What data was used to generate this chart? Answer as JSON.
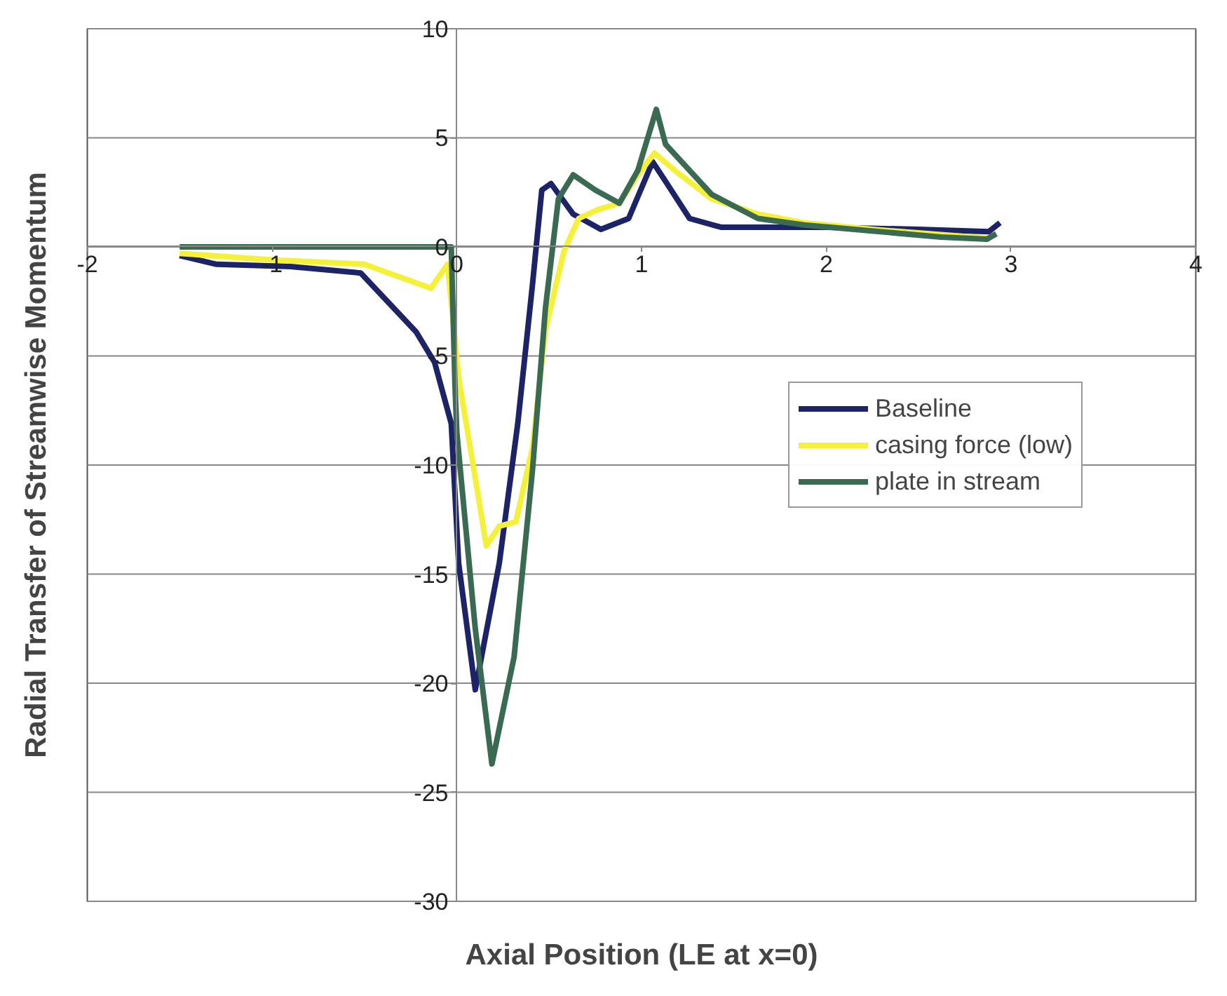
{
  "chart_data": {
    "type": "line",
    "xlabel": "Axial Position (LE at x=0)",
    "ylabel": "Radial Transfer of Streamwise Momentum",
    "xlim": [
      -2,
      4
    ],
    "ylim": [
      -30,
      10
    ],
    "xticks": [
      -2,
      -1,
      0,
      1,
      2,
      3,
      4
    ],
    "yticks": [
      -30,
      -25,
      -20,
      -15,
      -10,
      -5,
      0,
      5,
      10
    ],
    "grid": "y",
    "legend": "right",
    "marker": "none",
    "line_style": "solid",
    "series": [
      {
        "name": "Baseline",
        "color": "#1c2366",
        "x": [
          -1.5,
          -1.3,
          -0.9,
          -0.52,
          -0.22,
          -0.12,
          -0.03,
          0.01,
          0.1,
          0.23,
          0.33,
          0.41,
          0.46,
          0.51,
          0.63,
          0.78,
          0.93,
          1.06,
          1.13,
          1.26,
          1.43,
          1.7,
          2.0,
          2.5,
          2.88,
          2.94
        ],
        "values": [
          -0.4,
          -0.8,
          -0.9,
          -1.2,
          -3.9,
          -5.3,
          -8.1,
          -14.5,
          -20.3,
          -14.5,
          -8.1,
          -1.7,
          2.6,
          2.9,
          1.5,
          0.8,
          1.3,
          3.9,
          3.0,
          1.3,
          0.9,
          0.9,
          0.9,
          0.8,
          0.7,
          1.1
        ]
      },
      {
        "name": "casing force (low)",
        "color": "#f5f03a",
        "x": [
          -1.5,
          -1.0,
          -0.5,
          -0.14,
          -0.05,
          0.01,
          0.1,
          0.16,
          0.23,
          0.32,
          0.41,
          0.48,
          0.58,
          0.66,
          0.76,
          0.88,
          0.98,
          1.07,
          1.18,
          1.38,
          1.63,
          1.88,
          2.25,
          2.87
        ],
        "values": [
          -0.3,
          -0.6,
          -0.8,
          -1.9,
          -0.8,
          -6.0,
          -10.6,
          -13.7,
          -12.8,
          -12.6,
          -9.2,
          -3.8,
          -0.2,
          1.3,
          1.7,
          2.0,
          3.3,
          4.3,
          3.5,
          2.2,
          1.5,
          1.1,
          0.8,
          0.4
        ]
      },
      {
        "name": "plate in stream",
        "color": "#3a6b52",
        "x": [
          -1.5,
          -0.03,
          -0.01,
          0.0,
          0.1,
          0.19,
          0.31,
          0.41,
          0.48,
          0.55,
          0.63,
          0.75,
          0.88,
          0.98,
          1.08,
          1.13,
          1.38,
          1.63,
          1.88,
          2.62,
          2.87,
          2.92
        ],
        "values": [
          0,
          0,
          -6.3,
          -8.5,
          -17.5,
          -23.7,
          -18.8,
          -10.2,
          -2.8,
          2.2,
          3.3,
          2.6,
          2.0,
          3.5,
          6.3,
          4.7,
          2.4,
          1.3,
          1.0,
          0.45,
          0.35,
          0.6
        ]
      }
    ]
  }
}
